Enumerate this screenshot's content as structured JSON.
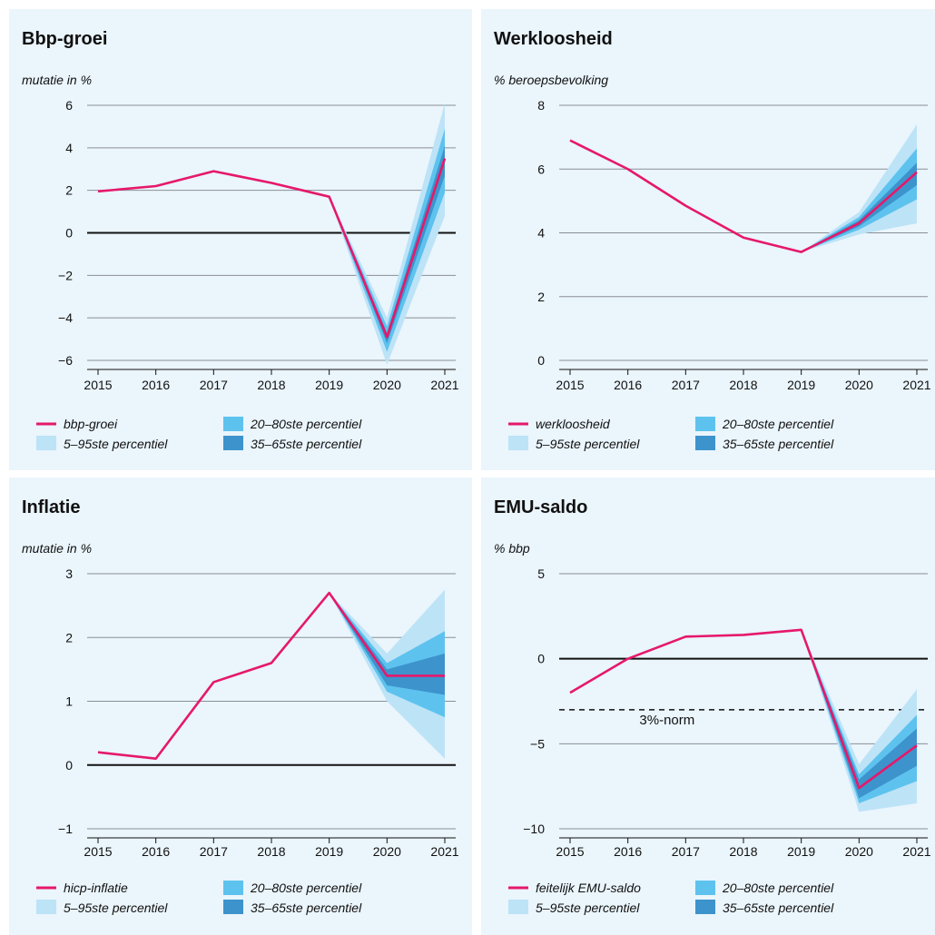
{
  "colors": {
    "line": "#e6186a",
    "band_5_95": "#bde3f7",
    "band_20_80": "#5ec2ee",
    "band_35_65": "#3d93cc",
    "grid": "#8a8f94",
    "zero": "#111111",
    "panel_bg": "#eaf5fc"
  },
  "legend_labels": {
    "band_20_80": "20–80ste percentiel",
    "band_5_95": "5–95ste percentiel",
    "band_35_65": "35–65ste percentiel"
  },
  "chart_data": [
    {
      "type": "line",
      "title": "Bbp-groei",
      "ylabel": "mutatie in %",
      "x": [
        2015,
        2016,
        2017,
        2018,
        2019,
        2020,
        2021
      ],
      "ylim": [
        -6,
        6
      ],
      "yticks": [
        6,
        4,
        2,
        0,
        -2,
        -4,
        -6
      ],
      "ytick_labels": [
        "6",
        "4",
        "2",
        "0",
        "−2",
        "−4",
        "−6"
      ],
      "grid": true,
      "zero_line": 0,
      "series": [
        {
          "name": "bbp-groei",
          "values": [
            1.95,
            2.2,
            2.9,
            2.35,
            1.7,
            -4.9,
            3.5
          ]
        }
      ],
      "fan_x": [
        2019,
        2020,
        2021
      ],
      "fan": {
        "p5_95": {
          "lower": [
            1.7,
            -6.2,
            0.8
          ],
          "upper": [
            1.7,
            -4.0,
            6.1
          ]
        },
        "p20_80": {
          "lower": [
            1.7,
            -5.6,
            1.9
          ],
          "upper": [
            1.7,
            -4.4,
            4.9
          ]
        },
        "p35_65": {
          "lower": [
            1.7,
            -5.2,
            2.7
          ],
          "upper": [
            1.7,
            -4.7,
            4.1
          ]
        }
      },
      "legend_line": "bbp-groei",
      "annotations": []
    },
    {
      "type": "line",
      "title": "Werkloosheid",
      "ylabel": "% beroepsbevolking",
      "x": [
        2015,
        2016,
        2017,
        2018,
        2019,
        2020,
        2021
      ],
      "ylim": [
        0,
        8
      ],
      "yticks": [
        8,
        6,
        4,
        2,
        0
      ],
      "ytick_labels": [
        "8",
        "6",
        "4",
        "2",
        "0"
      ],
      "grid": true,
      "zero_line": null,
      "series": [
        {
          "name": "werkloosheid",
          "values": [
            6.9,
            6.0,
            4.85,
            3.85,
            3.4,
            4.3,
            5.9
          ]
        }
      ],
      "fan_x": [
        2019,
        2020,
        2021
      ],
      "fan": {
        "p5_95": {
          "lower": [
            3.4,
            3.95,
            4.3
          ],
          "upper": [
            3.4,
            4.65,
            7.4
          ]
        },
        "p20_80": {
          "lower": [
            3.4,
            4.1,
            5.05
          ],
          "upper": [
            3.4,
            4.5,
            6.65
          ]
        },
        "p35_65": {
          "lower": [
            3.4,
            4.2,
            5.5
          ],
          "upper": [
            3.4,
            4.4,
            6.2
          ]
        }
      },
      "legend_line": "werkloosheid",
      "annotations": []
    },
    {
      "type": "line",
      "title": "Inflatie",
      "ylabel": "mutatie in %",
      "x": [
        2015,
        2016,
        2017,
        2018,
        2019,
        2020,
        2021
      ],
      "ylim": [
        -1,
        3
      ],
      "yticks": [
        3,
        2,
        1,
        0,
        -1
      ],
      "ytick_labels": [
        "3",
        "2",
        "1",
        "0",
        "−1"
      ],
      "grid": true,
      "zero_line": 0,
      "series": [
        {
          "name": "hicp-inflatie",
          "values": [
            0.2,
            0.1,
            1.3,
            1.6,
            2.7,
            1.4,
            1.4
          ]
        }
      ],
      "fan_x": [
        2019,
        2020,
        2021
      ],
      "fan": {
        "p5_95": {
          "lower": [
            2.7,
            1.0,
            0.1
          ],
          "upper": [
            2.7,
            1.75,
            2.75
          ]
        },
        "p20_80": {
          "lower": [
            2.7,
            1.15,
            0.75
          ],
          "upper": [
            2.7,
            1.6,
            2.1
          ]
        },
        "p35_65": {
          "lower": [
            2.7,
            1.25,
            1.1
          ],
          "upper": [
            2.7,
            1.5,
            1.75
          ]
        }
      },
      "legend_line": "hicp-inflatie",
      "annotations": []
    },
    {
      "type": "line",
      "title": "EMU-saldo",
      "ylabel": "% bbp",
      "x": [
        2015,
        2016,
        2017,
        2018,
        2019,
        2020,
        2021
      ],
      "ylim": [
        -10,
        5
      ],
      "yticks": [
        5,
        0,
        -5,
        -10
      ],
      "ytick_labels": [
        "5",
        "0",
        "−5",
        "−10"
      ],
      "grid": true,
      "zero_line": 0,
      "series": [
        {
          "name": "feitelijk EMU-saldo",
          "values": [
            -2.0,
            0.0,
            1.3,
            1.4,
            1.7,
            -7.6,
            -5.1
          ]
        }
      ],
      "fan_x": [
        2019,
        2020,
        2021
      ],
      "fan": {
        "p5_95": {
          "lower": [
            1.7,
            -9.0,
            -8.5
          ],
          "upper": [
            1.7,
            -6.2,
            -1.8
          ]
        },
        "p20_80": {
          "lower": [
            1.7,
            -8.5,
            -7.2
          ],
          "upper": [
            1.7,
            -6.8,
            -3.3
          ]
        },
        "p35_65": {
          "lower": [
            1.7,
            -8.2,
            -6.3
          ],
          "upper": [
            1.7,
            -7.1,
            -4.1
          ]
        }
      },
      "legend_line": "feitelijk EMU-saldo",
      "annotations": [
        {
          "text": "3%-norm",
          "y": -3
        }
      ]
    }
  ]
}
